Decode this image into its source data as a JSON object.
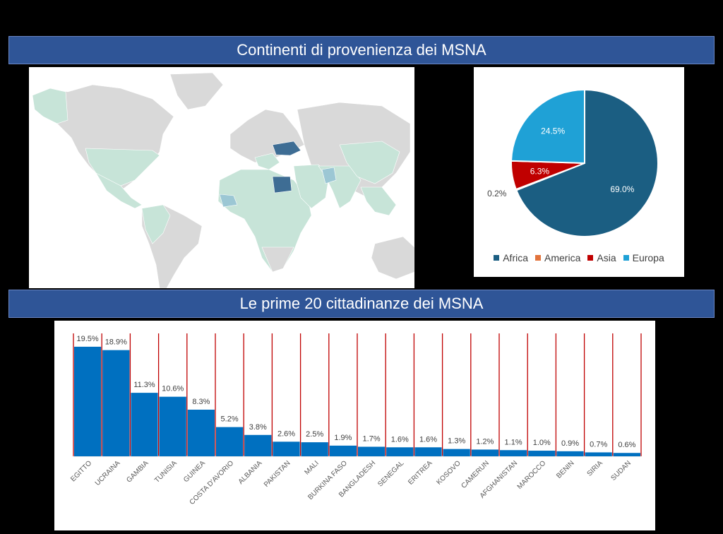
{
  "titles": {
    "top": "Continenti di provenienza dei MSNA",
    "bottom": "Le prime 20 cittadinanze dei MSNA"
  },
  "colors": {
    "banner": "#2f5597",
    "africa": "#1b5e82",
    "america": "#e2733c",
    "asia": "#c00000",
    "europa": "#1fa1d6",
    "bar": "#0070c0",
    "gridline": "#c00000",
    "map_land": "#d9d9d9",
    "map_origin": "#c7e4d8",
    "map_high": "#3e6d94"
  },
  "chart_data": [
    {
      "type": "pie",
      "title": "",
      "slices": [
        {
          "name": "Africa",
          "value": 69.0,
          "label": "69.0%"
        },
        {
          "name": "America",
          "value": 0.2,
          "label": "0.2%"
        },
        {
          "name": "Asia",
          "value": 6.3,
          "label": "6.3%"
        },
        {
          "name": "Europa",
          "value": 24.5,
          "label": "24.5%"
        }
      ],
      "legend": [
        "Africa",
        "America",
        "Asia",
        "Europa"
      ]
    },
    {
      "type": "bar",
      "title": "",
      "categories": [
        "EGITTO",
        "UCRAINA",
        "GAMBIA",
        "TUNISIA",
        "GUINEA",
        "COSTA D'AVORIO",
        "ALBANIA",
        "PAKISTAN",
        "MALI",
        "BURKINA FASO",
        "BANGLADESH",
        "SENEGAL",
        "ERITREA",
        "KOSOVO",
        "CAMERUN",
        "AFGHANISTAN",
        "MAROCCO",
        "BENIN",
        "SIRIA",
        "SUDAN"
      ],
      "values": [
        19.5,
        18.9,
        11.3,
        10.6,
        8.3,
        5.2,
        3.8,
        2.6,
        2.5,
        1.9,
        1.7,
        1.6,
        1.6,
        1.3,
        1.2,
        1.1,
        1.0,
        0.9,
        0.7,
        0.6
      ],
      "labels": [
        "19.5%",
        "18.9%",
        "11.3%",
        "10.6%",
        "8.3%",
        "5.2%",
        "3.8%",
        "2.6%",
        "2.5%",
        "1.9%",
        "1.7%",
        "1.6%",
        "1.6%",
        "1.3%",
        "1.2%",
        "1.1%",
        "1.0%",
        "0.9%",
        "0.7%",
        "0.6%"
      ],
      "ylim": [
        0,
        22
      ]
    }
  ]
}
